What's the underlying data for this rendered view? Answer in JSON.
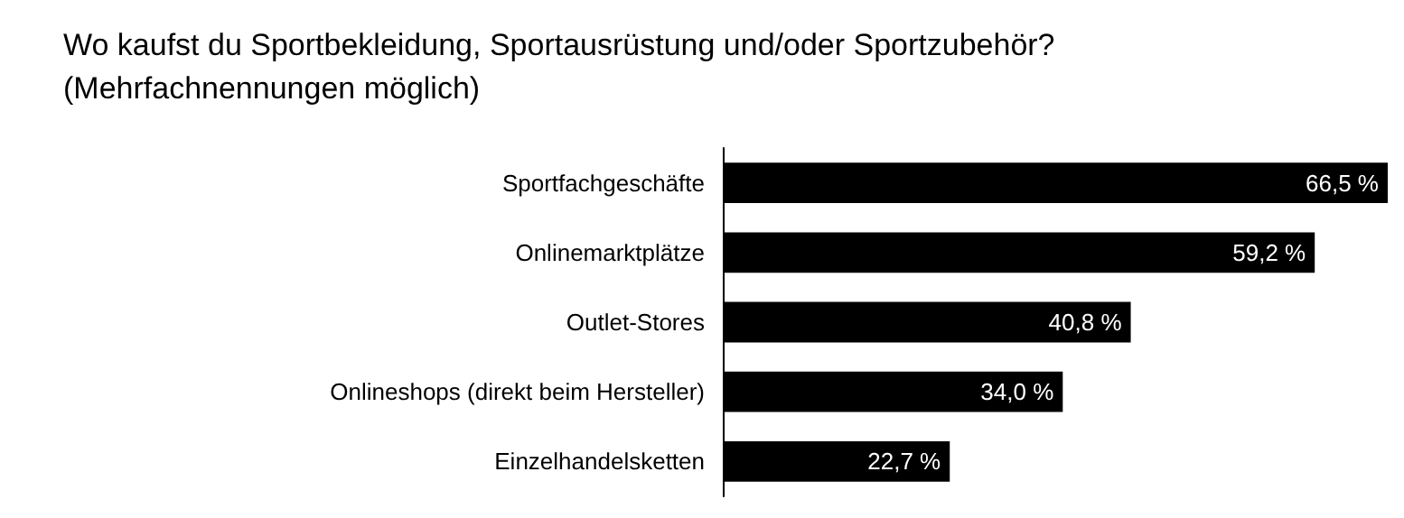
{
  "chart_data": {
    "type": "bar",
    "orientation": "horizontal",
    "title": "Wo kaufst du Sportbekleidung, Sportausrüstung und/oder Sportzubehör?\n(Mehrfachnennungen möglich)",
    "categories": [
      "Sportfachgeschäfte",
      "Onlinemarktplätze",
      "Outlet-Stores",
      "Onlineshops (direkt beim Hersteller)",
      "Einzelhandelsketten"
    ],
    "values": [
      66.5,
      59.2,
      40.8,
      34.0,
      22.7
    ],
    "value_labels": [
      "66,5 %",
      "59,2 %",
      "40,8 %",
      "34,0 %",
      "22,7 %"
    ],
    "color": "#000000",
    "xlim": [
      0,
      66.5
    ]
  }
}
